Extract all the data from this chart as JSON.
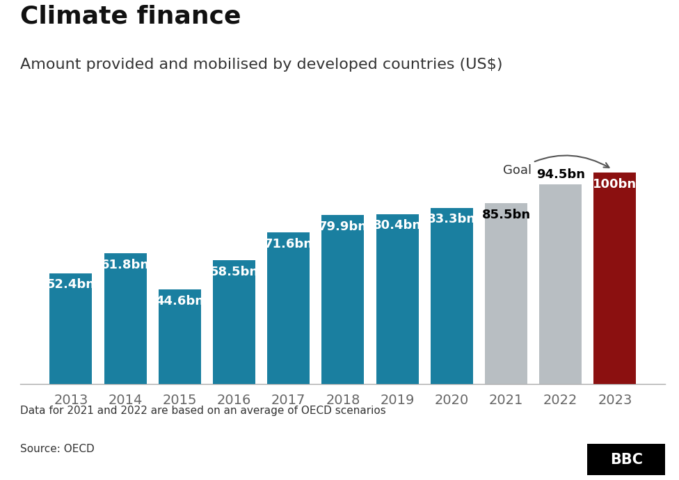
{
  "title": "Climate finance",
  "subtitle": "Amount provided and mobilised by developed countries (US$)",
  "years": [
    "2013",
    "2014",
    "2015",
    "2016",
    "2017",
    "2018",
    "2019",
    "2020",
    "2021",
    "2022",
    "2023"
  ],
  "values": [
    52.4,
    61.8,
    44.6,
    58.5,
    71.6,
    79.9,
    80.4,
    83.3,
    85.5,
    94.5,
    100
  ],
  "labels": [
    "52.4bn",
    "61.8bn",
    "44.6bn",
    "58.5bn",
    "71.6bn",
    "79.9bn",
    "80.4bn",
    "83.3bn",
    "85.5bn",
    "94.5bn",
    "100bn"
  ],
  "colors": [
    "#1a7fa0",
    "#1a7fa0",
    "#1a7fa0",
    "#1a7fa0",
    "#1a7fa0",
    "#1a7fa0",
    "#1a7fa0",
    "#1a7fa0",
    "#b8bec2",
    "#b8bec2",
    "#8b1010"
  ],
  "label_colors": [
    "white",
    "white",
    "white",
    "white",
    "white",
    "white",
    "white",
    "white",
    "black",
    "black",
    "white"
  ],
  "label_inside": [
    true,
    true,
    true,
    true,
    true,
    true,
    true,
    true,
    true,
    false,
    true
  ],
  "footnote": "Data for 2021 and 2022 are based on an average of OECD scenarios",
  "source": "Source: OECD",
  "bg_color": "#ffffff",
  "title_fontsize": 26,
  "subtitle_fontsize": 16,
  "label_fontsize": 13,
  "tick_fontsize": 14,
  "goal_text": "Goal",
  "ylim": [
    0,
    118
  ]
}
